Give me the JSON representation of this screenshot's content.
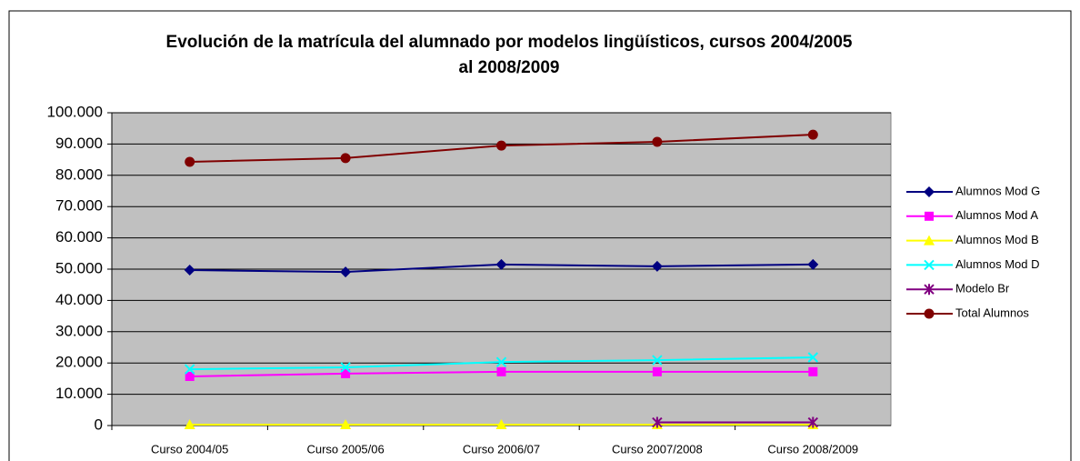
{
  "chart_data": {
    "type": "line",
    "title": [
      "Evolución de la matrícula del alumnado por modelos lingüísticos, cursos 2004/2005",
      "al 2008/2009"
    ],
    "categories": [
      "Curso 2004/05",
      "Curso 2005/06",
      "Curso 2006/07",
      "Curso 2007/2008",
      "Curso 2008/2009"
    ],
    "series": [
      {
        "name": "Alumnos Mod G",
        "color": "#000080",
        "marker": "diamond",
        "values": [
          49700,
          49100,
          51500,
          50900,
          51500
        ]
      },
      {
        "name": "Alumnos Mod A",
        "color": "#ff00ff",
        "marker": "square",
        "values": [
          15700,
          16600,
          17200,
          17200,
          17200
        ]
      },
      {
        "name": "Alumnos Mod B",
        "color": "#ffff00",
        "marker": "triangle",
        "values": [
          300,
          300,
          300,
          300,
          300
        ]
      },
      {
        "name": "Alumnos Mod D",
        "color": "#00ffff",
        "marker": "x",
        "values": [
          18000,
          18600,
          20300,
          20900,
          21800
        ]
      },
      {
        "name": "Modelo Br",
        "color": "#800080",
        "marker": "star",
        "values": [
          null,
          null,
          null,
          1000,
          1000
        ]
      },
      {
        "name": "Total Alumnos",
        "color": "#800000",
        "marker": "circle",
        "values": [
          84300,
          85500,
          89500,
          90700,
          93000
        ]
      }
    ],
    "ylim": [
      0,
      100000
    ],
    "yticks": [
      0,
      {
        "value": 10000,
        "label": "10.000"
      },
      {
        "value": 20000,
        "label": "20.000"
      },
      {
        "value": 30000,
        "label": "30.000"
      },
      {
        "value": 40000,
        "label": "40.000"
      },
      {
        "value": 50000,
        "label": "50.000"
      },
      {
        "value": 60000,
        "label": "60.000"
      },
      {
        "value": 70000,
        "label": "70.000"
      },
      {
        "value": 80000,
        "label": "80.000"
      },
      {
        "value": 90000,
        "label": "90.000"
      },
      {
        "value": 100000,
        "label": "100.000"
      }
    ],
    "grid": true,
    "legend": "right",
    "plot_background": "#c0c0c0"
  }
}
